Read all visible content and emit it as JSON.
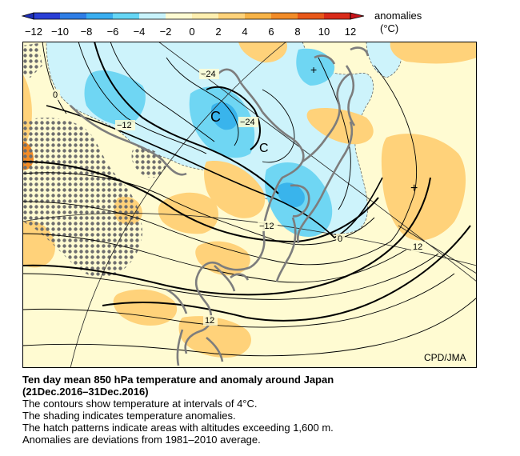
{
  "legend": {
    "title": "anomalies",
    "unit": "(°C)",
    "ticks": [
      "−12",
      "−10",
      "−8",
      "−6",
      "−4",
      "−2",
      "0",
      "2",
      "4",
      "6",
      "8",
      "10",
      "12"
    ],
    "colors": [
      "#2a3fd6",
      "#2f7ee6",
      "#3aaef0",
      "#66d6f5",
      "#c8f3fb",
      "#fffbd2",
      "#ffefb0",
      "#ffd27a",
      "#f7b347",
      "#f28c28",
      "#e8581a",
      "#d92b1a"
    ]
  },
  "map": {
    "credit": "CPD/JMA",
    "contour_labels": [
      "−24",
      "−24",
      "−12",
      "0",
      "−12",
      "0",
      "12",
      "12"
    ],
    "low_marks": [
      "C",
      "C"
    ],
    "high_marks": [
      "+",
      "+"
    ]
  },
  "caption": {
    "title_line1": "Ten day mean 850 hPa temperature and anomaly around Japan",
    "title_line2": "(21Dec.2016–31Dec.2016)",
    "lines": [
      "The contours show temperature at intervals of 4°C.",
      "The shading indicates temperature anomalies.",
      "The hatch patterns indicate areas with altitudes exceeding 1,600 m.",
      "Anomalies are deviations from 1981–2010 average."
    ]
  }
}
